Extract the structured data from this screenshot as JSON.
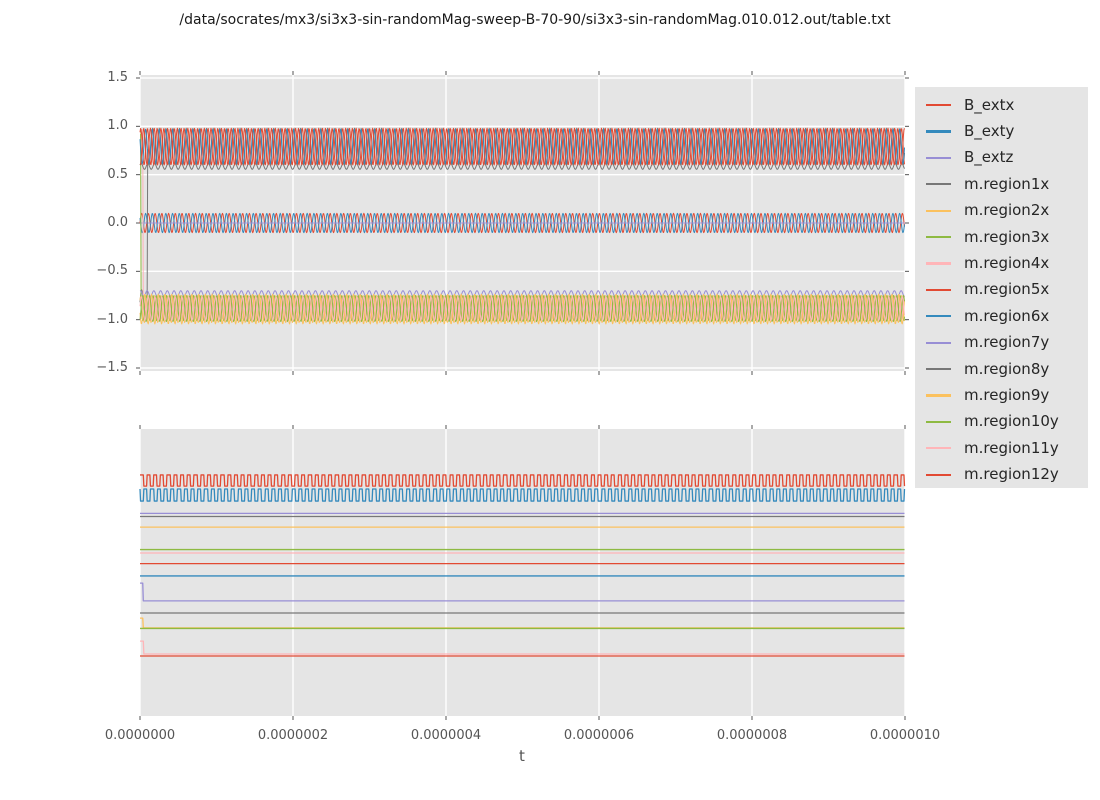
{
  "chart_data": {
    "type": "line",
    "title": "/data/socrates/mx3/si3x3-sin-randomMag-sweep-B-70-90/si3x3-sin-randomMag.010.012.out/table.txt",
    "xlabel": "t",
    "x_range": [
      0,
      1e-06
    ],
    "x_ticks": [
      "0.0000000",
      "0.0000002",
      "0.0000004",
      "0.0000006",
      "0.0000008",
      "0.0000010"
    ],
    "x_tick_values": [
      0,
      2e-07,
      4e-07,
      6e-07,
      8e-07,
      1e-06
    ],
    "oscillation_period_s": 8.8e-09,
    "style": {
      "figure_background": "#ffffff",
      "panel_background": "#e5e5e5",
      "grid_color": "#ffffff",
      "tick_color": "#555555",
      "title_color": "#1a1a1a",
      "legend_background": "#e5e5e5",
      "legend_text_color": "#262626",
      "legend_position": "right"
    },
    "panels": [
      {
        "id": "top",
        "ylim": [
          -1.531,
          1.531
        ],
        "y_ticks": [
          "1.5",
          "1.0",
          "0.5",
          "0.0",
          "−0.5",
          "−1.0",
          "−1.5"
        ],
        "y_tick_values": [
          1.5,
          1.0,
          0.5,
          0.0,
          -0.5,
          -1.0,
          -1.5
        ],
        "grid": "horizontal+vertical",
        "description": "B_ext components oscillate around 0 (amp ~0.1); region x/y magnetization oscillates in a band near +0.79 and a band near -0.88"
      },
      {
        "id": "bottom",
        "y_ticks": [],
        "grid": "vertical",
        "description": "all 15 series shown as levels; positions given as fraction of panel height from top (no y tick labels shown)"
      }
    ],
    "series": [
      {
        "name": "B_extx",
        "color": "#E24A33",
        "top": {
          "kind": "sine",
          "mean": 0,
          "amp": 0.1,
          "phase": 0.0
        },
        "bottom": {
          "kind": "square",
          "hi": 0.16,
          "lo": 0.199,
          "phase": 0.0
        }
      },
      {
        "name": "B_exty",
        "color": "#348ABD",
        "top": {
          "kind": "sine",
          "mean": 0,
          "amp": 0.1,
          "phase": 2.6
        },
        "bottom": {
          "kind": "square",
          "hi": 0.209,
          "lo": 0.251,
          "phase": 0.45
        }
      },
      {
        "name": "B_extz",
        "color": "#988ED5",
        "top": {
          "kind": "const",
          "value": 0
        },
        "bottom": {
          "kind": "const",
          "y": 0.294
        }
      },
      {
        "name": "m.region1x",
        "color": "#777777",
        "top": {
          "kind": "sine",
          "mean": 0.79,
          "amp": 0.19,
          "phase": 2.4,
          "start": {
            "until": 1e-08,
            "mean": -0.82,
            "amp": 0.13
          }
        },
        "bottom": {
          "kind": "const",
          "y": 0.305
        }
      },
      {
        "name": "m.region2x",
        "color": "#FBC15E",
        "top": {
          "kind": "sine",
          "mean": -0.89,
          "amp": 0.14,
          "phase": 0.7
        },
        "bottom": {
          "kind": "const",
          "y": 0.342
        }
      },
      {
        "name": "m.region3x",
        "color": "#8EBA42",
        "top": {
          "kind": "sine",
          "mean": -0.88,
          "amp": 0.13,
          "phase": 2.0,
          "start": {
            "until": 8e-10,
            "value": 0.97
          }
        },
        "bottom": {
          "kind": "const",
          "y": 0.42
        }
      },
      {
        "name": "m.region4x",
        "color": "#FFB5B8",
        "top": {
          "kind": "sine",
          "mean": -0.88,
          "amp": 0.13,
          "phase": 4.2,
          "start": {
            "until": 4e-09,
            "value": 0.93
          }
        },
        "bottom": {
          "kind": "const",
          "y": 0.432
        }
      },
      {
        "name": "m.region5x",
        "color": "#E24A33",
        "top": {
          "kind": "sine",
          "mean": 0.79,
          "amp": 0.19,
          "phase": 0.9
        },
        "bottom": {
          "kind": "const",
          "y": 0.469
        }
      },
      {
        "name": "m.region6x",
        "color": "#348ABD",
        "top": {
          "kind": "sine",
          "mean": 0.79,
          "amp": 0.18,
          "phase": 2.7
        },
        "bottom": {
          "kind": "const",
          "y": 0.512
        }
      },
      {
        "name": "m.region7y",
        "color": "#988ED5",
        "top": {
          "kind": "sine",
          "mean": -0.73,
          "amp": 0.03,
          "phase": 1.2
        },
        "bottom": {
          "kind": "step",
          "from": 0.537,
          "to": 0.599,
          "at": 4e-09
        }
      },
      {
        "name": "m.region8y",
        "color": "#777777",
        "top": {
          "kind": "sine",
          "mean": 0.585,
          "amp": 0.03,
          "phase": 0.5
        },
        "bottom": {
          "kind": "const",
          "y": 0.641
        }
      },
      {
        "name": "m.region9y",
        "color": "#FBC15E",
        "top": {
          "kind": "sine",
          "mean": -0.89,
          "amp": 0.155,
          "phase": 3.4
        },
        "bottom": {
          "kind": "step",
          "from": 0.659,
          "to": 0.693,
          "at": 4e-09
        }
      },
      {
        "name": "m.region10y",
        "color": "#8EBA42",
        "top": {
          "kind": "sine",
          "mean": -0.885,
          "amp": 0.135,
          "phase": 5.3
        },
        "bottom": {
          "kind": "const",
          "y": 0.695
        }
      },
      {
        "name": "m.region11y",
        "color": "#FFB5B8",
        "top": {
          "kind": "sine",
          "mean": -0.885,
          "amp": 0.125,
          "phase": 0.2
        },
        "bottom": {
          "kind": "step",
          "from": 0.739,
          "to": 0.784,
          "at": 5e-09
        }
      },
      {
        "name": "m.region12y",
        "color": "#E24A33",
        "top": {
          "kind": "sine",
          "mean": 0.79,
          "amp": 0.19,
          "phase": 4.4
        },
        "bottom": {
          "kind": "const",
          "y": 0.791
        }
      }
    ],
    "legend_entries": [
      "B_extx",
      "B_exty",
      "B_extz",
      "m.region1x",
      "m.region2x",
      "m.region3x",
      "m.region4x",
      "m.region5x",
      "m.region6x",
      "m.region7y",
      "m.region8y",
      "m.region9y",
      "m.region10y",
      "m.region11y",
      "m.region12y"
    ]
  }
}
